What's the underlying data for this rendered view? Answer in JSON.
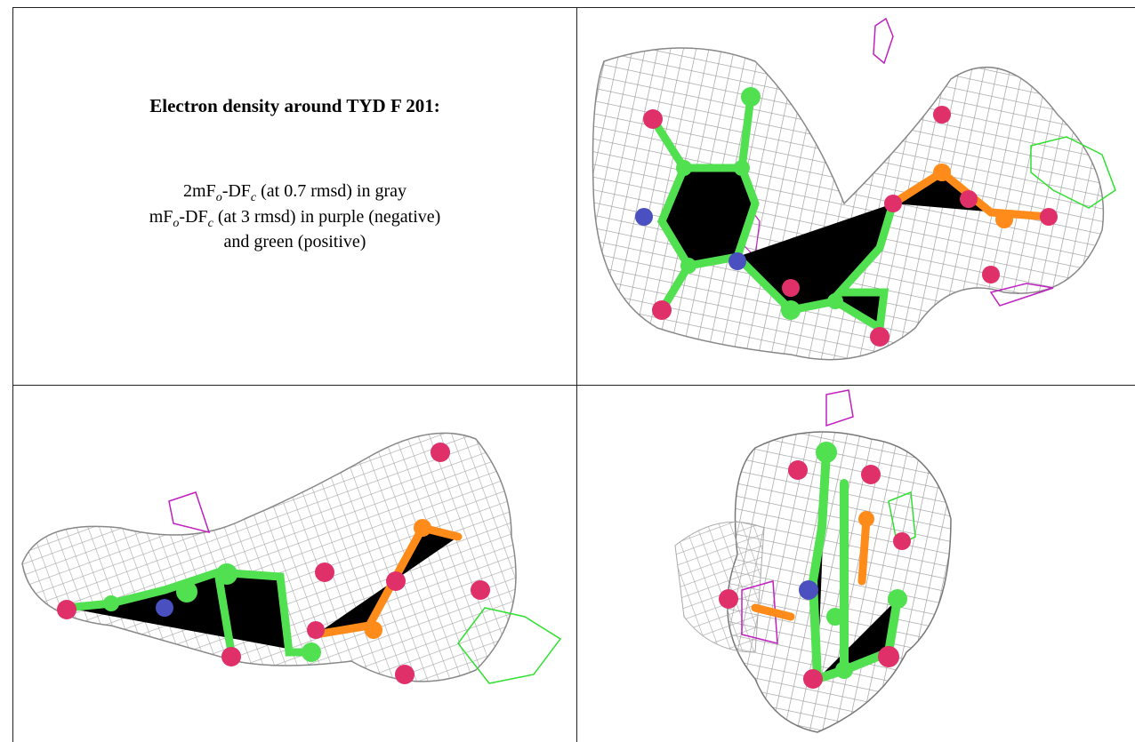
{
  "caption": {
    "title": "Electron density around TYD F 201:",
    "lines": [
      [
        "2mF",
        "o",
        "-DF",
        "c",
        " (at 0.7 rmsd) in gray"
      ],
      [
        "mF",
        "o",
        "-DF",
        "c",
        " (at 3 rmsd) in purple (negative)"
      ],
      [
        "and green (positive)"
      ]
    ]
  }
}
